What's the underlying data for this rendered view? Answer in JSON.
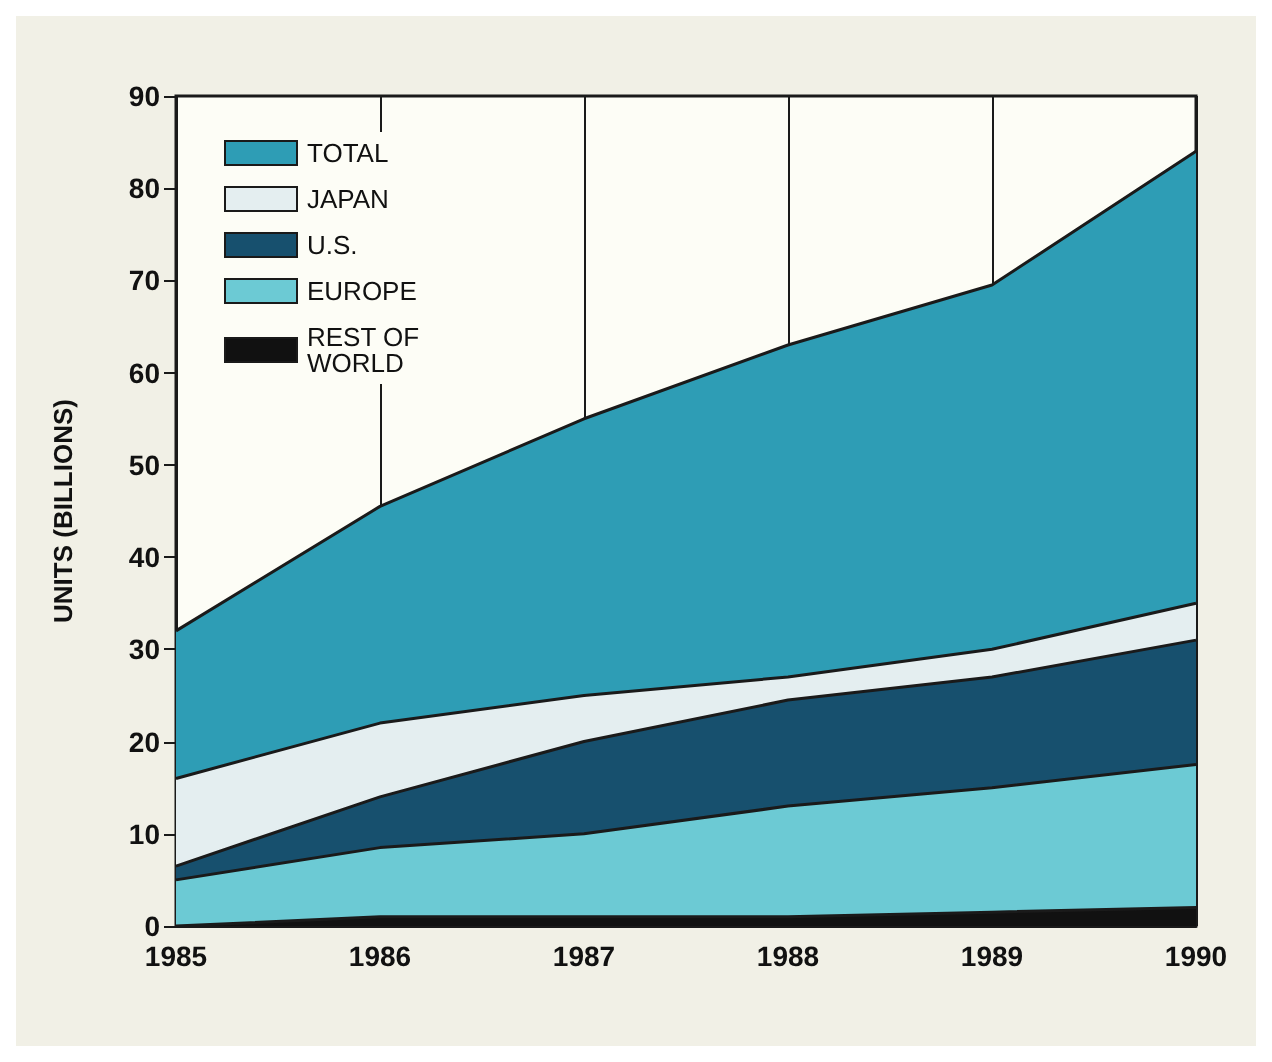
{
  "chart_data": {
    "type": "area",
    "ylabel": "UNITS (BILLIONS)",
    "x": [
      1985,
      1986,
      1987,
      1988,
      1989,
      1990
    ],
    "series": [
      {
        "name": "TOTAL",
        "color": "#2e9db5",
        "values": [
          32,
          45.5,
          55,
          63,
          69.5,
          84
        ]
      },
      {
        "name": "JAPAN",
        "color": "#e4eef0",
        "values": [
          16,
          22,
          25,
          27,
          30,
          35
        ]
      },
      {
        "name": "U.S.",
        "color": "#17506e",
        "values": [
          6.5,
          14,
          20,
          24.5,
          27,
          31
        ]
      },
      {
        "name": "EUROPE",
        "color": "#6ccad4",
        "values": [
          5,
          8.5,
          10,
          13,
          15,
          17.5
        ]
      },
      {
        "name": "REST OF WORLD",
        "color": "#111111",
        "values": [
          0,
          1,
          1,
          1,
          1.5,
          2
        ]
      }
    ],
    "xlim": [
      1985,
      1990
    ],
    "xticks": [
      1985,
      1986,
      1987,
      1988,
      1989,
      1990
    ],
    "ylim": [
      0,
      90
    ],
    "yticks": [
      0,
      10,
      20,
      30,
      40,
      50,
      60,
      70,
      80,
      90
    ],
    "grid": "x",
    "legend": "top left"
  }
}
